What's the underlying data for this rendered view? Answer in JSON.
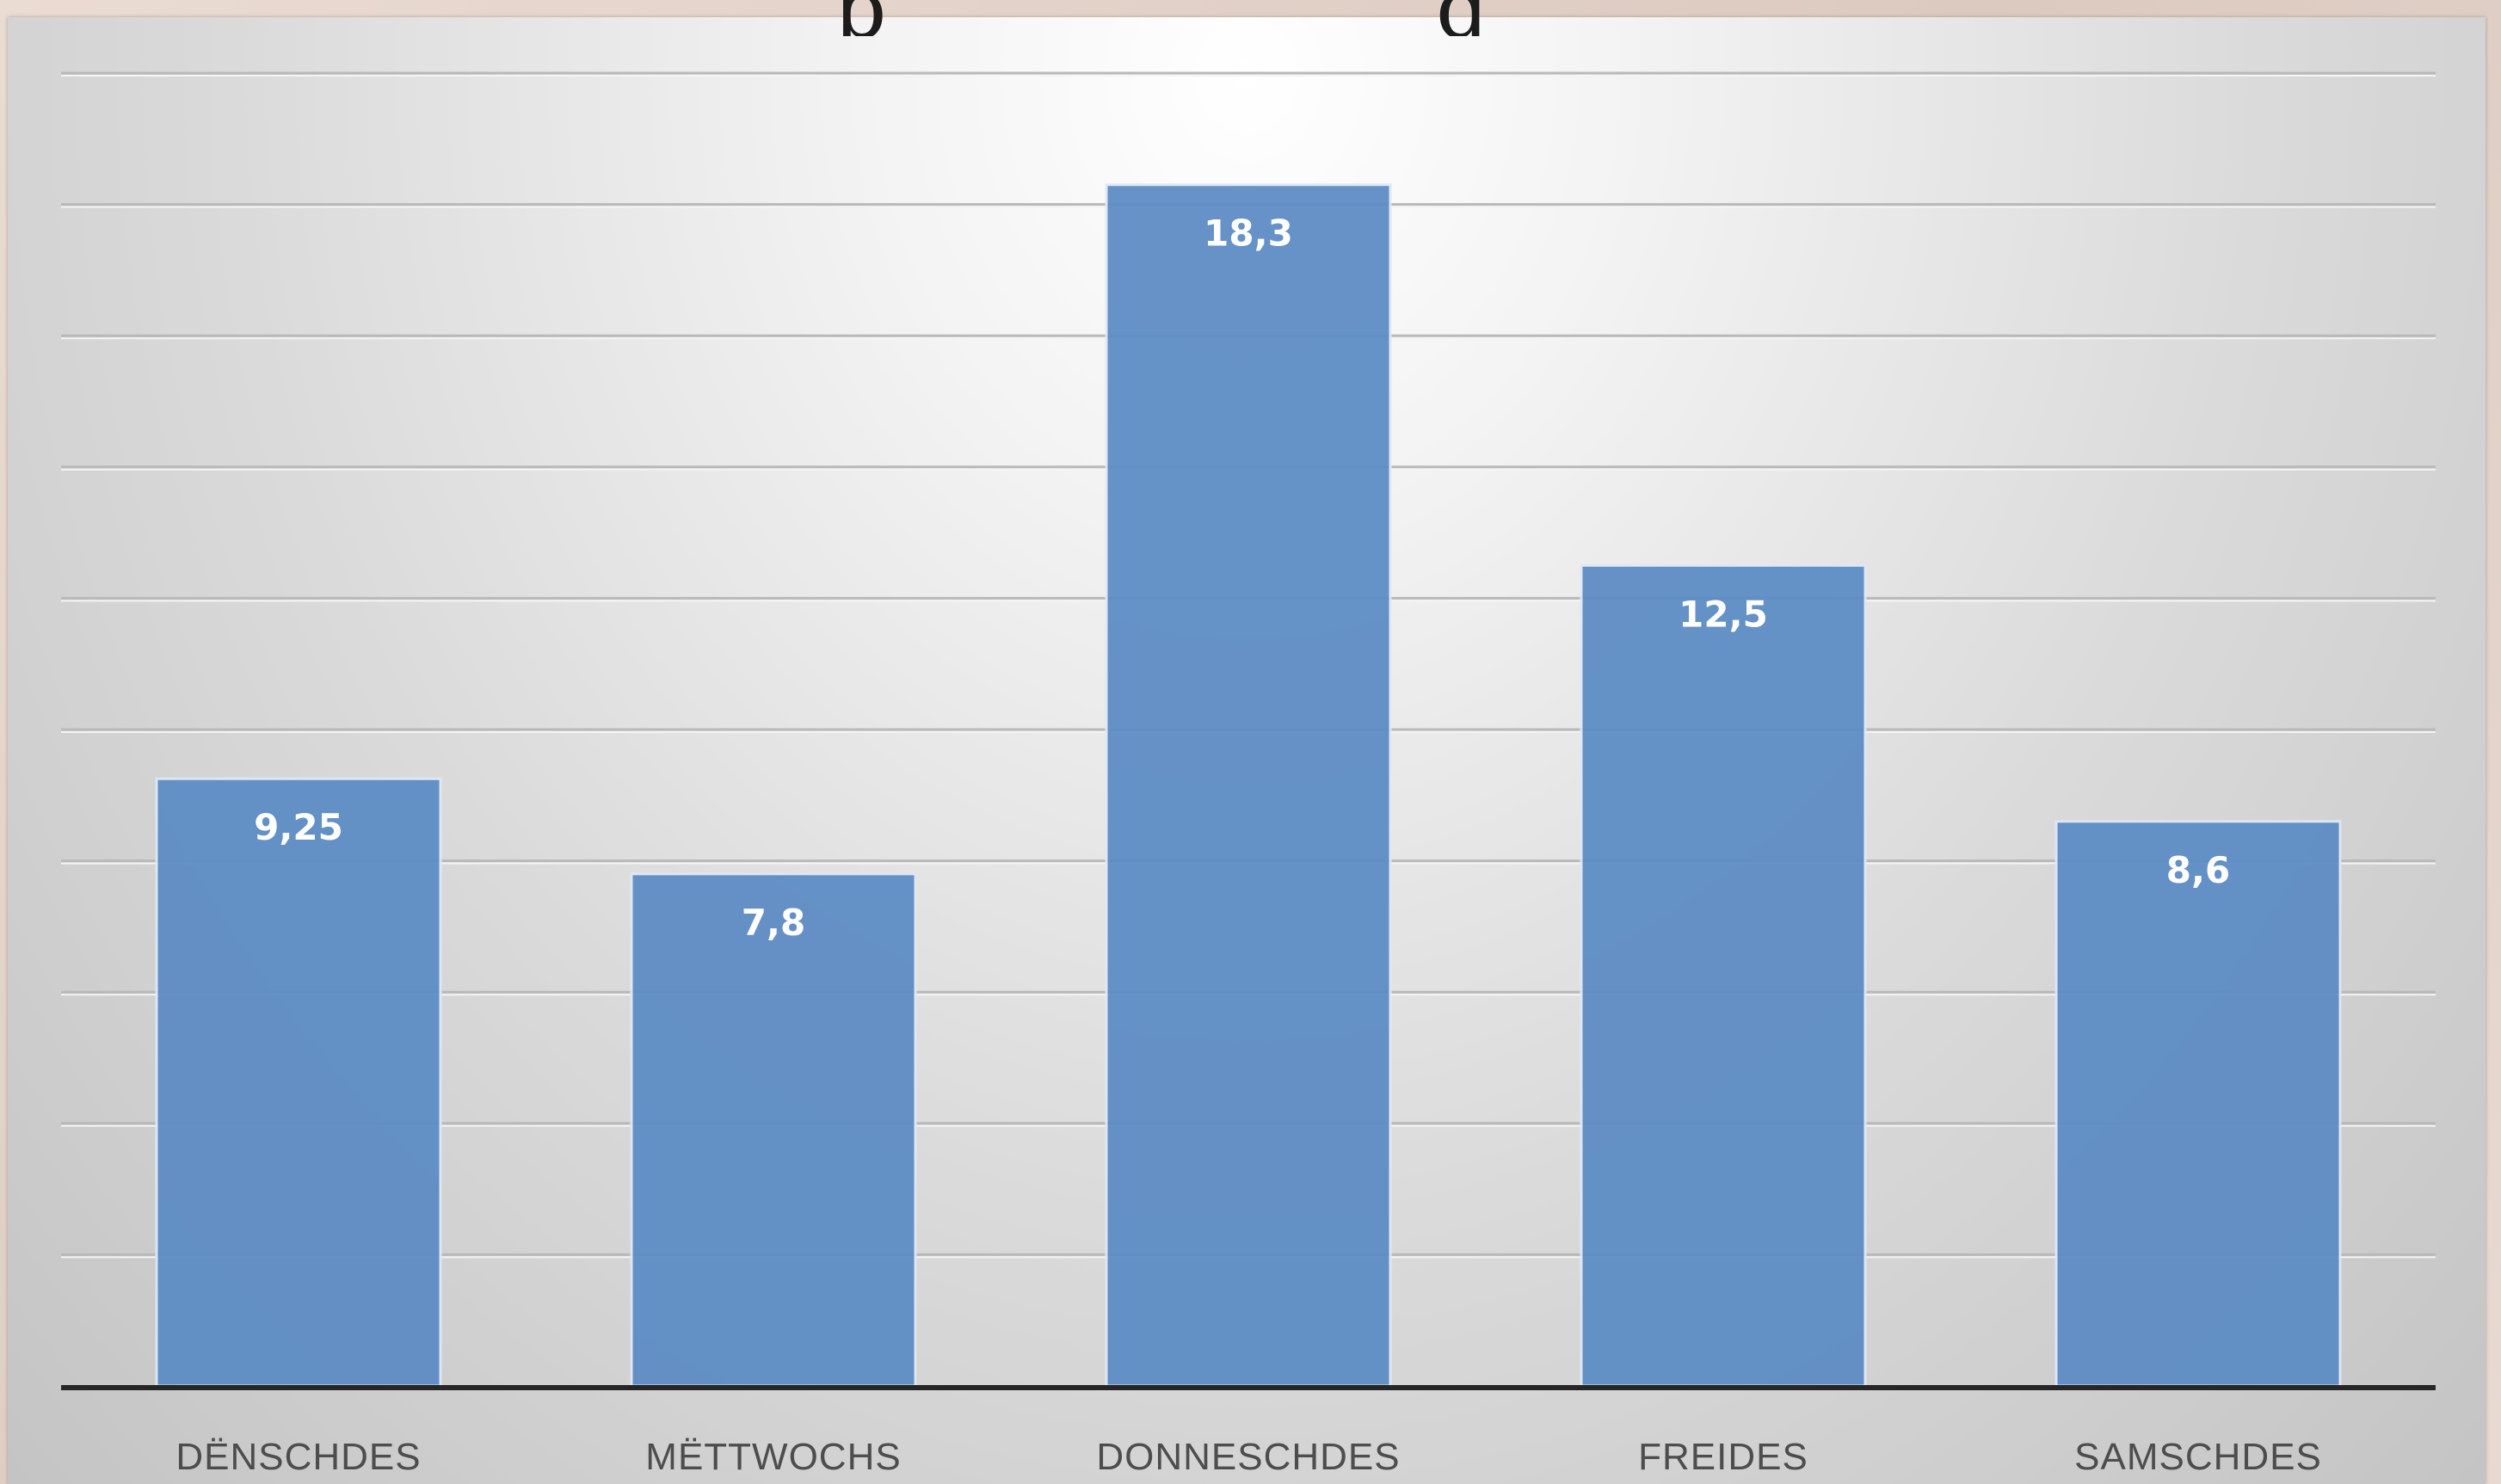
{
  "chart_data": {
    "type": "bar",
    "categories": [
      "DËNSCHDES",
      "MËTTWOCHS",
      "DONNESCHDES",
      "FREIDES",
      "SAMSCHDES"
    ],
    "values": [
      9.25,
      7.8,
      18.3,
      12.5,
      8.6
    ],
    "data_labels": [
      "9,25",
      "7,8",
      "18,3",
      "12,5",
      "8,6"
    ],
    "ylim": [
      0,
      20
    ],
    "gridlines": true,
    "gridline_step": 2,
    "bar_color": "#5b8bc4",
    "title": "",
    "xlabel": "",
    "ylabel": "",
    "legend": "none"
  }
}
